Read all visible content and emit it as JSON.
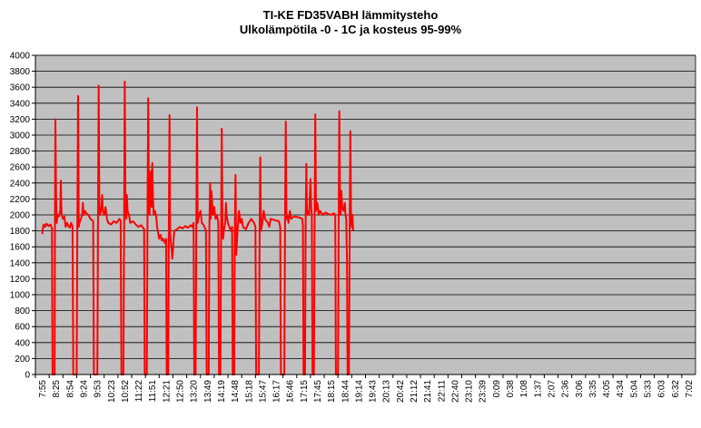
{
  "chart_data": {
    "type": "line",
    "title": "TI-KE FD35VABH lämmitysteho",
    "subtitle": "Ulkolämpötila  -0 - 1C ja kosteus 95-99%",
    "xlabel": "",
    "ylabel": "",
    "ylim": [
      0,
      4000
    ],
    "yticks": [
      0,
      200,
      400,
      600,
      800,
      1000,
      1200,
      1400,
      1600,
      1800,
      2000,
      2200,
      2400,
      2600,
      2800,
      3000,
      3200,
      3400,
      3600,
      3800,
      4000
    ],
    "xticks": [
      "7:55",
      "8:25",
      "8:54",
      "9:24",
      "9:53",
      "10:23",
      "10:52",
      "11:22",
      "11:51",
      "12:21",
      "12:50",
      "13:20",
      "13:49",
      "14:19",
      "14:48",
      "15:18",
      "15:47",
      "16:17",
      "16:46",
      "17:15",
      "17:45",
      "18:15",
      "18:44",
      "19:14",
      "19:43",
      "20:13",
      "20:42",
      "21:12",
      "21:41",
      "22:11",
      "22:40",
      "23:10",
      "23:39",
      "0:09",
      "0:38",
      "1:08",
      "1:37",
      "2:07",
      "2:36",
      "3:06",
      "3:35",
      "4:05",
      "4:34",
      "5:04",
      "5:33",
      "6:03",
      "6:32",
      "7:02"
    ],
    "grid": true,
    "legend": "none",
    "line_color": "#ff0000",
    "plot_background": "#c0c0c0",
    "series": [
      {
        "name": "",
        "points": [
          [
            0.0,
            1760
          ],
          [
            0.05,
            1840
          ],
          [
            0.1,
            1880
          ],
          [
            0.2,
            1850
          ],
          [
            0.3,
            1890
          ],
          [
            0.45,
            1860
          ],
          [
            0.6,
            1880
          ],
          [
            0.7,
            1830
          ],
          [
            0.75,
            0
          ],
          [
            0.9,
            0
          ],
          [
            0.92,
            1800
          ],
          [
            0.95,
            3200
          ],
          [
            1.0,
            2300
          ],
          [
            1.05,
            1900
          ],
          [
            1.1,
            2000
          ],
          [
            1.2,
            1980
          ],
          [
            1.3,
            2050
          ],
          [
            1.35,
            2430
          ],
          [
            1.4,
            2000
          ],
          [
            1.5,
            1950
          ],
          [
            1.6,
            1980
          ],
          [
            1.7,
            1850
          ],
          [
            1.8,
            1900
          ],
          [
            1.9,
            1860
          ],
          [
            2.0,
            1840
          ],
          [
            2.1,
            1900
          ],
          [
            2.2,
            1850
          ],
          [
            2.25,
            0
          ],
          [
            2.5,
            0
          ],
          [
            2.55,
            1900
          ],
          [
            2.6,
            3490
          ],
          [
            2.65,
            1850
          ],
          [
            2.7,
            1900
          ],
          [
            2.8,
            1950
          ],
          [
            2.9,
            2000
          ],
          [
            2.95,
            2150
          ],
          [
            3.0,
            2000
          ],
          [
            3.1,
            2050
          ],
          [
            3.2,
            2020
          ],
          [
            3.35,
            2000
          ],
          [
            3.5,
            1950
          ],
          [
            3.65,
            1930
          ],
          [
            3.7,
            1920
          ],
          [
            3.75,
            0
          ],
          [
            4.0,
            0
          ],
          [
            4.05,
            1850
          ],
          [
            4.1,
            3620
          ],
          [
            4.15,
            2100
          ],
          [
            4.2,
            2000
          ],
          [
            4.3,
            2100
          ],
          [
            4.35,
            2250
          ],
          [
            4.4,
            2050
          ],
          [
            4.5,
            2000
          ],
          [
            4.6,
            2100
          ],
          [
            4.7,
            1950
          ],
          [
            4.8,
            1900
          ],
          [
            5.0,
            1880
          ],
          [
            5.2,
            1920
          ],
          [
            5.4,
            1900
          ],
          [
            5.6,
            1950
          ],
          [
            5.7,
            1930
          ],
          [
            5.75,
            0
          ],
          [
            5.9,
            0
          ],
          [
            5.95,
            1900
          ],
          [
            6.0,
            3670
          ],
          [
            6.05,
            2100
          ],
          [
            6.1,
            1950
          ],
          [
            6.15,
            2250
          ],
          [
            6.2,
            2050
          ],
          [
            6.3,
            2000
          ],
          [
            6.4,
            1900
          ],
          [
            6.6,
            1920
          ],
          [
            6.8,
            1880
          ],
          [
            7.0,
            1850
          ],
          [
            7.2,
            1870
          ],
          [
            7.4,
            1820
          ],
          [
            7.45,
            0
          ],
          [
            7.6,
            0
          ],
          [
            7.65,
            1880
          ],
          [
            7.7,
            3460
          ],
          [
            7.75,
            2100
          ],
          [
            7.8,
            2000
          ],
          [
            7.85,
            2500
          ],
          [
            7.9,
            2550
          ],
          [
            7.95,
            2100
          ],
          [
            8.0,
            2650
          ],
          [
            8.05,
            2200
          ],
          [
            8.1,
            2000
          ],
          [
            8.2,
            2050
          ],
          [
            8.3,
            1950
          ],
          [
            8.35,
            1850
          ],
          [
            8.4,
            1800
          ],
          [
            8.5,
            1700
          ],
          [
            8.6,
            1750
          ],
          [
            8.7,
            1680
          ],
          [
            8.8,
            1700
          ],
          [
            8.9,
            1650
          ],
          [
            9.0,
            1700
          ],
          [
            9.05,
            0
          ],
          [
            9.15,
            0
          ],
          [
            9.2,
            1850
          ],
          [
            9.25,
            3250
          ],
          [
            9.3,
            1750
          ],
          [
            9.35,
            1650
          ],
          [
            9.4,
            1580
          ],
          [
            9.45,
            1450
          ],
          [
            9.5,
            1550
          ],
          [
            9.55,
            1700
          ],
          [
            9.6,
            1800
          ],
          [
            9.8,
            1820
          ],
          [
            10.0,
            1850
          ],
          [
            10.2,
            1830
          ],
          [
            10.4,
            1860
          ],
          [
            10.6,
            1840
          ],
          [
            10.8,
            1870
          ],
          [
            10.9,
            1850
          ],
          [
            11.0,
            1900
          ],
          [
            11.05,
            0
          ],
          [
            11.15,
            0
          ],
          [
            11.2,
            1850
          ],
          [
            11.25,
            3350
          ],
          [
            11.3,
            1900
          ],
          [
            11.4,
            2000
          ],
          [
            11.5,
            2050
          ],
          [
            11.6,
            1900
          ],
          [
            11.7,
            1880
          ],
          [
            11.8,
            1850
          ],
          [
            11.9,
            1800
          ],
          [
            11.95,
            0
          ],
          [
            12.1,
            0
          ],
          [
            12.15,
            1850
          ],
          [
            12.2,
            2400
          ],
          [
            12.25,
            1950
          ],
          [
            12.3,
            2300
          ],
          [
            12.4,
            2000
          ],
          [
            12.5,
            2100
          ],
          [
            12.6,
            1950
          ],
          [
            12.7,
            2000
          ],
          [
            12.8,
            1900
          ],
          [
            12.85,
            0
          ],
          [
            12.95,
            0
          ],
          [
            13.0,
            1800
          ],
          [
            13.05,
            3080
          ],
          [
            13.1,
            1850
          ],
          [
            13.15,
            1700
          ],
          [
            13.2,
            1800
          ],
          [
            13.3,
            1900
          ],
          [
            13.35,
            2150
          ],
          [
            13.4,
            2000
          ],
          [
            13.5,
            1900
          ],
          [
            13.6,
            1850
          ],
          [
            13.7,
            1800
          ],
          [
            13.8,
            1850
          ],
          [
            13.85,
            0
          ],
          [
            13.95,
            0
          ],
          [
            14.0,
            1800
          ],
          [
            14.05,
            2500
          ],
          [
            14.1,
            1500
          ],
          [
            14.15,
            1650
          ],
          [
            14.2,
            1800
          ],
          [
            14.3,
            2050
          ],
          [
            14.4,
            1900
          ],
          [
            14.5,
            1950
          ],
          [
            14.6,
            1850
          ],
          [
            14.8,
            1820
          ],
          [
            15.0,
            1900
          ],
          [
            15.2,
            1950
          ],
          [
            15.4,
            1900
          ],
          [
            15.5,
            1850
          ],
          [
            15.55,
            0
          ],
          [
            15.75,
            0
          ],
          [
            15.8,
            1750
          ],
          [
            15.85,
            2720
          ],
          [
            15.9,
            1800
          ],
          [
            16.0,
            1900
          ],
          [
            16.1,
            2050
          ],
          [
            16.2,
            1950
          ],
          [
            16.4,
            1900
          ],
          [
            16.5,
            1850
          ],
          [
            16.6,
            1950
          ],
          [
            16.8,
            1940
          ],
          [
            17.0,
            1930
          ],
          [
            17.2,
            1920
          ],
          [
            17.3,
            1850
          ],
          [
            17.35,
            0
          ],
          [
            17.6,
            0
          ],
          [
            17.65,
            1900
          ],
          [
            17.7,
            3170
          ],
          [
            17.75,
            1950
          ],
          [
            17.8,
            2000
          ],
          [
            17.9,
            1900
          ],
          [
            18.0,
            2050
          ],
          [
            18.1,
            1950
          ],
          [
            18.2,
            1970
          ],
          [
            18.4,
            1980
          ],
          [
            18.6,
            1970
          ],
          [
            18.8,
            1960
          ],
          [
            18.9,
            1950
          ],
          [
            18.95,
            1870
          ],
          [
            19.0,
            0
          ],
          [
            19.1,
            0
          ],
          [
            19.15,
            1900
          ],
          [
            19.2,
            2640
          ],
          [
            19.25,
            2000
          ],
          [
            19.3,
            2050
          ],
          [
            19.4,
            2000
          ],
          [
            19.5,
            2450
          ],
          [
            19.55,
            2100
          ],
          [
            19.6,
            2000
          ],
          [
            19.65,
            0
          ],
          [
            19.75,
            0
          ],
          [
            19.8,
            1950
          ],
          [
            19.85,
            3260
          ],
          [
            19.9,
            2050
          ],
          [
            20.0,
            2150
          ],
          [
            20.1,
            2000
          ],
          [
            20.2,
            2050
          ],
          [
            20.4,
            2000
          ],
          [
            20.6,
            2030
          ],
          [
            20.8,
            2010
          ],
          [
            21.0,
            2000
          ],
          [
            21.2,
            2020
          ],
          [
            21.3,
            2000
          ],
          [
            21.35,
            0
          ],
          [
            21.5,
            0
          ],
          [
            21.55,
            1950
          ],
          [
            21.6,
            3300
          ],
          [
            21.65,
            2100
          ],
          [
            21.7,
            2000
          ],
          [
            21.75,
            2300
          ],
          [
            21.8,
            2100
          ],
          [
            21.9,
            2050
          ],
          [
            22.0,
            2150
          ],
          [
            22.05,
            2000
          ],
          [
            22.1,
            1950
          ],
          [
            22.15,
            1450
          ],
          [
            22.2,
            0
          ],
          [
            22.3,
            0
          ],
          [
            22.35,
            1800
          ],
          [
            22.4,
            3050
          ],
          [
            22.45,
            2000
          ],
          [
            22.5,
            1850
          ],
          [
            22.55,
            2000
          ],
          [
            22.6,
            1800
          ]
        ]
      }
    ]
  }
}
